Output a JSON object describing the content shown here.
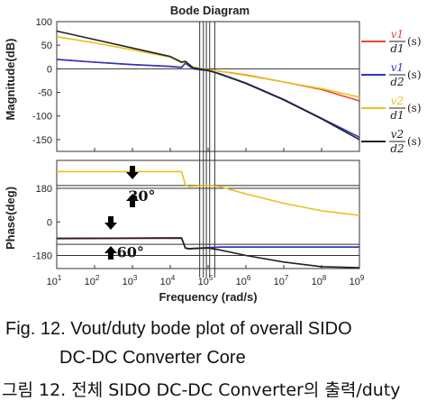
{
  "chart_data": {
    "type": "line",
    "title": "Bode Diagram",
    "xlabel": "Frequency (rad/s)",
    "x_scale": "log",
    "xlim": [
      10,
      1000000000
    ],
    "x_ticks": [
      {
        "base": "10",
        "exp": "1"
      },
      {
        "base": "10",
        "exp": "2"
      },
      {
        "base": "10",
        "exp": "3"
      },
      {
        "base": "10",
        "exp": "4"
      },
      {
        "base": "10",
        "exp": "5"
      },
      {
        "base": "10",
        "exp": "6"
      },
      {
        "base": "10",
        "exp": "7"
      },
      {
        "base": "10",
        "exp": "8"
      },
      {
        "base": "10",
        "exp": "9"
      }
    ],
    "magnitude": {
      "ylabel": "Magnitude(dB)",
      "ylim": [
        -175,
        100
      ],
      "y_ticks": [
        "100",
        "50",
        "0",
        "-50",
        "-100",
        "-150"
      ],
      "series": [
        {
          "name": "v1/d1",
          "color": "#e8472b",
          "x": [
            10,
            100,
            1000,
            10000,
            20000,
            25000,
            40000,
            100000,
            200000,
            1000000,
            10000000,
            100000000,
            1000000000
          ],
          "y": [
            20,
            14,
            9,
            5,
            3,
            12,
            1,
            -2,
            -5,
            -13,
            -28,
            -44,
            -68
          ]
        },
        {
          "name": "v1/d2",
          "color": "#2a36c4",
          "x": [
            10,
            100,
            1000,
            10000,
            20000,
            25000,
            40000,
            100000,
            200000,
            1000000,
            10000000,
            100000000,
            1000000000
          ],
          "y": [
            20,
            14,
            9,
            5,
            3,
            12,
            0,
            -4,
            -10,
            -30,
            -65,
            -105,
            -145
          ]
        },
        {
          "name": "v2/d1",
          "color": "#e8c21e",
          "x": [
            10,
            100,
            1000,
            10000,
            20000,
            25000,
            40000,
            100000,
            200000,
            1000000,
            10000000,
            100000000,
            1000000000
          ],
          "y": [
            68,
            55,
            40,
            25,
            13,
            15,
            4,
            -2,
            -5,
            -14,
            -28,
            -42,
            -60
          ]
        },
        {
          "name": "v2/d2",
          "color": "#222222",
          "x": [
            10,
            100,
            1000,
            10000,
            20000,
            25000,
            40000,
            100000,
            200000,
            1000000,
            10000000,
            100000000,
            1000000000
          ],
          "y": [
            80,
            62,
            44,
            26,
            14,
            16,
            2,
            -3,
            -11,
            -31,
            -66,
            -106,
            -150
          ]
        }
      ]
    },
    "phase": {
      "ylabel": "Phase(deg)",
      "ylim": [
        -250,
        330
      ],
      "y_ticks": [
        "180",
        "0",
        "-180"
      ],
      "series": [
        {
          "name": "v1/d1",
          "color": "#e8472b",
          "x": [
            10,
            20000,
            25000,
            30000,
            100000,
            200000,
            1000000000
          ],
          "y": [
            -90,
            -88,
            -140,
            -145,
            -140,
            -135,
            -135
          ]
        },
        {
          "name": "v1/d2",
          "color": "#2a36c4",
          "x": [
            10,
            20000,
            25000,
            30000,
            100000,
            200000,
            1000000000
          ],
          "y": [
            -88,
            -86,
            -140,
            -143,
            -138,
            -135,
            -135
          ]
        },
        {
          "name": "v2/d1",
          "color": "#e8c21e",
          "x": [
            10,
            20000,
            25000,
            30000,
            100000,
            200000,
            1000000,
            10000000,
            100000000,
            1000000000
          ],
          "y": [
            270,
            270,
            200,
            190,
            195,
            190,
            150,
            100,
            60,
            35
          ]
        },
        {
          "name": "v2/d2",
          "color": "#222222",
          "x": [
            10,
            20000,
            25000,
            30000,
            100000,
            200000,
            1000000,
            10000000,
            100000000,
            1000000000
          ],
          "y": [
            -88,
            -86,
            -140,
            -143,
            -140,
            -150,
            -180,
            -215,
            -240,
            -245
          ]
        }
      ],
      "reference_lines": [
        195,
        180,
        -120,
        -180
      ],
      "annotations": [
        {
          "text": "30°",
          "x": 400,
          "y": 150
        },
        {
          "text": "60°",
          "x": 200,
          "y": -150
        }
      ]
    },
    "vertical_markers": [
      60000,
      75000,
      90000,
      110000,
      150000
    ],
    "legend": [
      {
        "num": "v1",
        "den": "d1",
        "suffix": "(s)",
        "color": "#e8472b"
      },
      {
        "num": "v1",
        "den": "d2",
        "suffix": "(s)",
        "color": "#2a36c4"
      },
      {
        "num": "v2",
        "den": "d1",
        "suffix": "(s)",
        "color": "#e8c21e"
      },
      {
        "num": "v2",
        "den": "d2",
        "suffix": "(s)",
        "color": "#222222"
      }
    ],
    "legend_position": "right"
  },
  "caption": {
    "line1": "Fig.   12.   Vout/duty   bode   plot   of   overall   SIDO",
    "line2": "DC-DC  Converter  Core",
    "line3": "그림 12. 전체 SIDO DC-DC Converter의 출력/duty"
  }
}
